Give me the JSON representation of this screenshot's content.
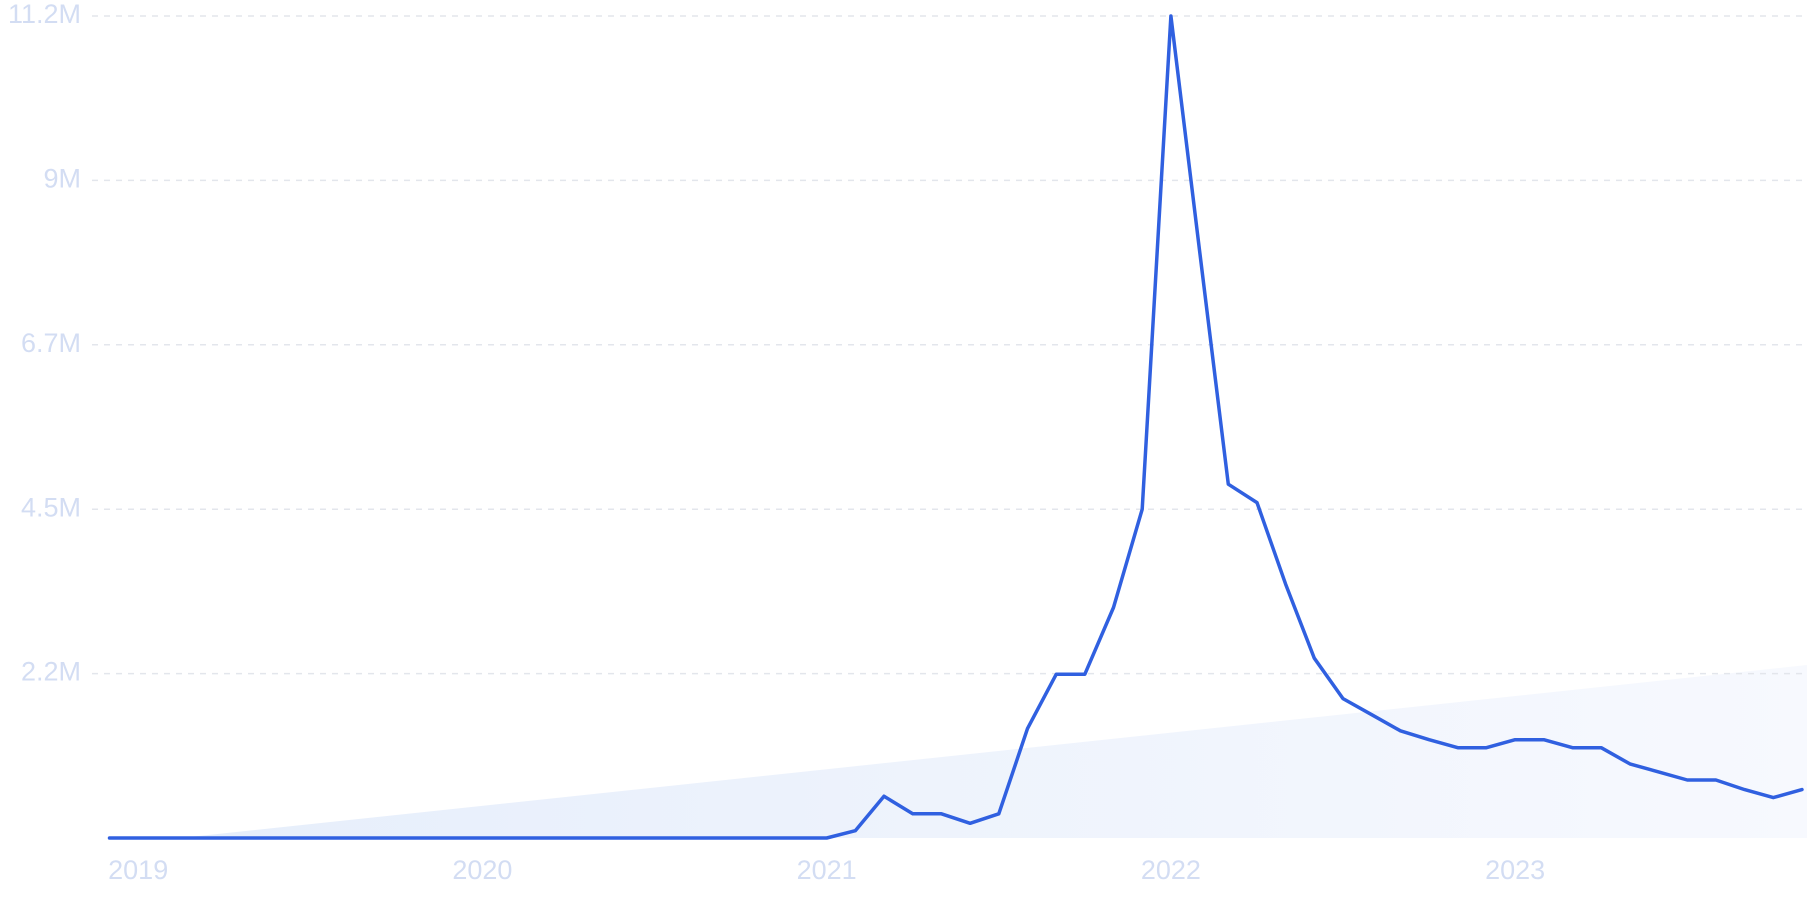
{
  "chart_data": {
    "type": "line",
    "x": [
      "2018-12",
      "2019-01",
      "2019-02",
      "2019-03",
      "2019-04",
      "2019-05",
      "2019-06",
      "2019-07",
      "2019-08",
      "2019-09",
      "2019-10",
      "2019-11",
      "2019-12",
      "2020-01",
      "2020-02",
      "2020-03",
      "2020-04",
      "2020-05",
      "2020-06",
      "2020-07",
      "2020-08",
      "2020-09",
      "2020-10",
      "2020-11",
      "2020-12",
      "2021-01",
      "2021-02",
      "2021-03",
      "2021-04",
      "2021-05",
      "2021-06",
      "2021-07",
      "2021-08",
      "2021-09",
      "2021-10",
      "2021-11",
      "2021-12",
      "2022-01",
      "2022-02",
      "2022-03",
      "2022-04",
      "2022-05",
      "2022-06",
      "2022-07",
      "2022-08",
      "2022-09",
      "2022-10",
      "2022-11",
      "2022-12",
      "2023-01",
      "2023-02",
      "2023-03",
      "2023-04",
      "2023-05",
      "2023-06",
      "2023-07",
      "2023-08",
      "2023-09",
      "2023-10",
      "2023-11"
    ],
    "values": [
      0,
      0,
      0,
      0,
      0,
      0,
      0,
      0,
      0,
      0,
      0,
      0,
      0,
      0,
      0,
      0,
      0,
      0,
      0,
      0,
      0,
      0,
      0,
      0,
      0,
      0,
      100000,
      570000,
      330000,
      330000,
      200000,
      330000,
      1490000,
      2230000,
      2230000,
      3140000,
      4480000,
      11200000,
      8000000,
      4820000,
      4570000,
      3460000,
      2450000,
      1900000,
      1680000,
      1460000,
      1340000,
      1230000,
      1230000,
      1340000,
      1340000,
      1230000,
      1230000,
      1010000,
      900000,
      790000,
      790000,
      660000,
      550000,
      660000
    ],
    "color": "#3060e0",
    "xlim": [
      "2018-12",
      "2023-11"
    ],
    "xticks": [
      {
        "value": "2019-01",
        "label": "2019"
      },
      {
        "value": "2020-01",
        "label": "2020"
      },
      {
        "value": "2021-01",
        "label": "2021"
      },
      {
        "value": "2022-01",
        "label": "2022"
      },
      {
        "value": "2023-01",
        "label": "2023"
      }
    ],
    "ylim": [
      0,
      11200000
    ],
    "yticks": [
      {
        "value": 2240000,
        "label": "2.2M"
      },
      {
        "value": 4480000,
        "label": "4.5M"
      },
      {
        "value": 6720000,
        "label": "6.7M"
      },
      {
        "value": 8960000,
        "label": "9M"
      },
      {
        "value": 11200000,
        "label": "11.2M"
      }
    ],
    "grid": true
  }
}
